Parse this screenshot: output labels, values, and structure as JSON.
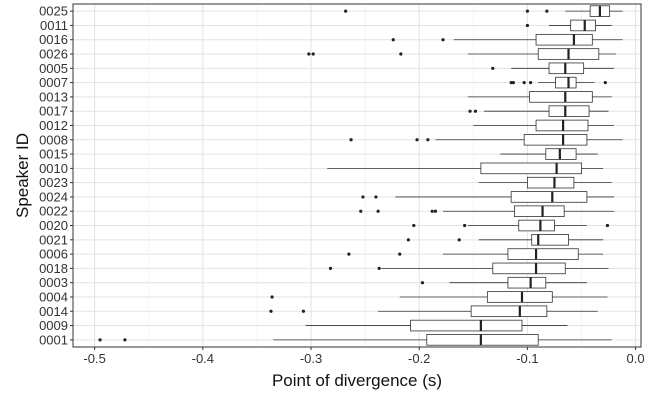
{
  "chart_data": {
    "type": "boxplot",
    "orientation": "horizontal",
    "xlabel": "Point of divergence (s)",
    "ylabel": "Speaker ID",
    "xlim": [
      -0.52,
      0.005
    ],
    "xticks": [
      -0.5,
      -0.4,
      -0.3,
      -0.2,
      -0.1,
      0.0
    ],
    "xtick_labels": [
      "-0.5",
      "-0.4",
      "-0.3",
      "-0.2",
      "-0.1",
      "0.0"
    ],
    "grid": true,
    "theme": "bw",
    "categories": [
      "0025",
      "0011",
      "0016",
      "0026",
      "0005",
      "0007",
      "0013",
      "0017",
      "0012",
      "0008",
      "0015",
      "0010",
      "0023",
      "0024",
      "0022",
      "0020",
      "0021",
      "0006",
      "0018",
      "0003",
      "0004",
      "0014",
      "0009",
      "0001"
    ],
    "boxes": [
      {
        "id": "0025",
        "whisker_low": -0.065,
        "q1": -0.042,
        "median": -0.033,
        "q3": -0.024,
        "whisker_high": -0.012,
        "outliers": [
          -0.268,
          -0.1,
          -0.082
        ]
      },
      {
        "id": "0011",
        "whisker_low": -0.08,
        "q1": -0.06,
        "median": -0.047,
        "q3": -0.037,
        "whisker_high": -0.022,
        "outliers": [
          -0.1
        ]
      },
      {
        "id": "0016",
        "whisker_low": -0.168,
        "q1": -0.092,
        "median": -0.057,
        "q3": -0.04,
        "whisker_high": -0.012,
        "outliers": [
          -0.224,
          -0.178
        ]
      },
      {
        "id": "0026",
        "whisker_low": -0.155,
        "q1": -0.09,
        "median": -0.062,
        "q3": -0.034,
        "whisker_high": -0.018,
        "outliers": [
          -0.302,
          -0.298,
          -0.217
        ]
      },
      {
        "id": "0005",
        "whisker_low": -0.115,
        "q1": -0.08,
        "median": -0.065,
        "q3": -0.048,
        "whisker_high": -0.02,
        "outliers": [
          -0.132
        ]
      },
      {
        "id": "0007",
        "whisker_low": -0.09,
        "q1": -0.074,
        "median": -0.062,
        "q3": -0.055,
        "whisker_high": -0.038,
        "outliers": [
          -0.115,
          -0.113,
          -0.103,
          -0.097,
          -0.028
        ]
      },
      {
        "id": "0013",
        "whisker_low": -0.155,
        "q1": -0.098,
        "median": -0.065,
        "q3": -0.04,
        "whisker_high": -0.022,
        "outliers": []
      },
      {
        "id": "0017",
        "whisker_low": -0.14,
        "q1": -0.08,
        "median": -0.065,
        "q3": -0.043,
        "whisker_high": -0.025,
        "outliers": [
          -0.153,
          -0.148
        ]
      },
      {
        "id": "0012",
        "whisker_low": -0.15,
        "q1": -0.092,
        "median": -0.067,
        "q3": -0.044,
        "whisker_high": -0.02,
        "outliers": []
      },
      {
        "id": "0008",
        "whisker_low": -0.185,
        "q1": -0.103,
        "median": -0.067,
        "q3": -0.045,
        "whisker_high": -0.012,
        "outliers": [
          -0.263,
          -0.202,
          -0.192
        ]
      },
      {
        "id": "0015",
        "whisker_low": -0.125,
        "q1": -0.083,
        "median": -0.07,
        "q3": -0.055,
        "whisker_high": -0.035,
        "outliers": []
      },
      {
        "id": "0010",
        "whisker_low": -0.285,
        "q1": -0.143,
        "median": -0.073,
        "q3": -0.05,
        "whisker_high": -0.03,
        "outliers": []
      },
      {
        "id": "0023",
        "whisker_low": -0.145,
        "q1": -0.1,
        "median": -0.075,
        "q3": -0.057,
        "whisker_high": -0.022,
        "outliers": []
      },
      {
        "id": "0024",
        "whisker_low": -0.222,
        "q1": -0.115,
        "median": -0.077,
        "q3": -0.045,
        "whisker_high": -0.02,
        "outliers": [
          -0.252,
          -0.24
        ]
      },
      {
        "id": "0022",
        "whisker_low": -0.178,
        "q1": -0.112,
        "median": -0.086,
        "q3": -0.066,
        "whisker_high": -0.02,
        "outliers": [
          -0.254,
          -0.238,
          -0.188,
          -0.185
        ]
      },
      {
        "id": "0020",
        "whisker_low": -0.155,
        "q1": -0.108,
        "median": -0.088,
        "q3": -0.075,
        "whisker_high": -0.045,
        "outliers": [
          -0.205,
          -0.158,
          -0.026
        ]
      },
      {
        "id": "0021",
        "whisker_low": -0.145,
        "q1": -0.096,
        "median": -0.09,
        "q3": -0.062,
        "whisker_high": -0.03,
        "outliers": [
          -0.21,
          -0.163
        ]
      },
      {
        "id": "0006",
        "whisker_low": -0.178,
        "q1": -0.118,
        "median": -0.092,
        "q3": -0.053,
        "whisker_high": -0.03,
        "outliers": [
          -0.265,
          -0.218
        ]
      },
      {
        "id": "0018",
        "whisker_low": -0.235,
        "q1": -0.132,
        "median": -0.092,
        "q3": -0.065,
        "whisker_high": -0.025,
        "outliers": [
          -0.282,
          -0.237
        ]
      },
      {
        "id": "0003",
        "whisker_low": -0.172,
        "q1": -0.118,
        "median": -0.097,
        "q3": -0.083,
        "whisker_high": -0.045,
        "outliers": [
          -0.197
        ]
      },
      {
        "id": "0004",
        "whisker_low": -0.218,
        "q1": -0.137,
        "median": -0.105,
        "q3": -0.077,
        "whisker_high": -0.026,
        "outliers": [
          -0.336
        ]
      },
      {
        "id": "0014",
        "whisker_low": -0.238,
        "q1": -0.152,
        "median": -0.107,
        "q3": -0.082,
        "whisker_high": -0.035,
        "outliers": [
          -0.337,
          -0.307
        ]
      },
      {
        "id": "0009",
        "whisker_low": -0.305,
        "q1": -0.208,
        "median": -0.143,
        "q3": -0.105,
        "whisker_high": -0.063,
        "outliers": []
      },
      {
        "id": "0001",
        "whisker_low": -0.335,
        "q1": -0.193,
        "median": -0.143,
        "q3": -0.09,
        "whisker_high": -0.022,
        "outliers": [
          -0.495,
          -0.472
        ]
      }
    ]
  }
}
